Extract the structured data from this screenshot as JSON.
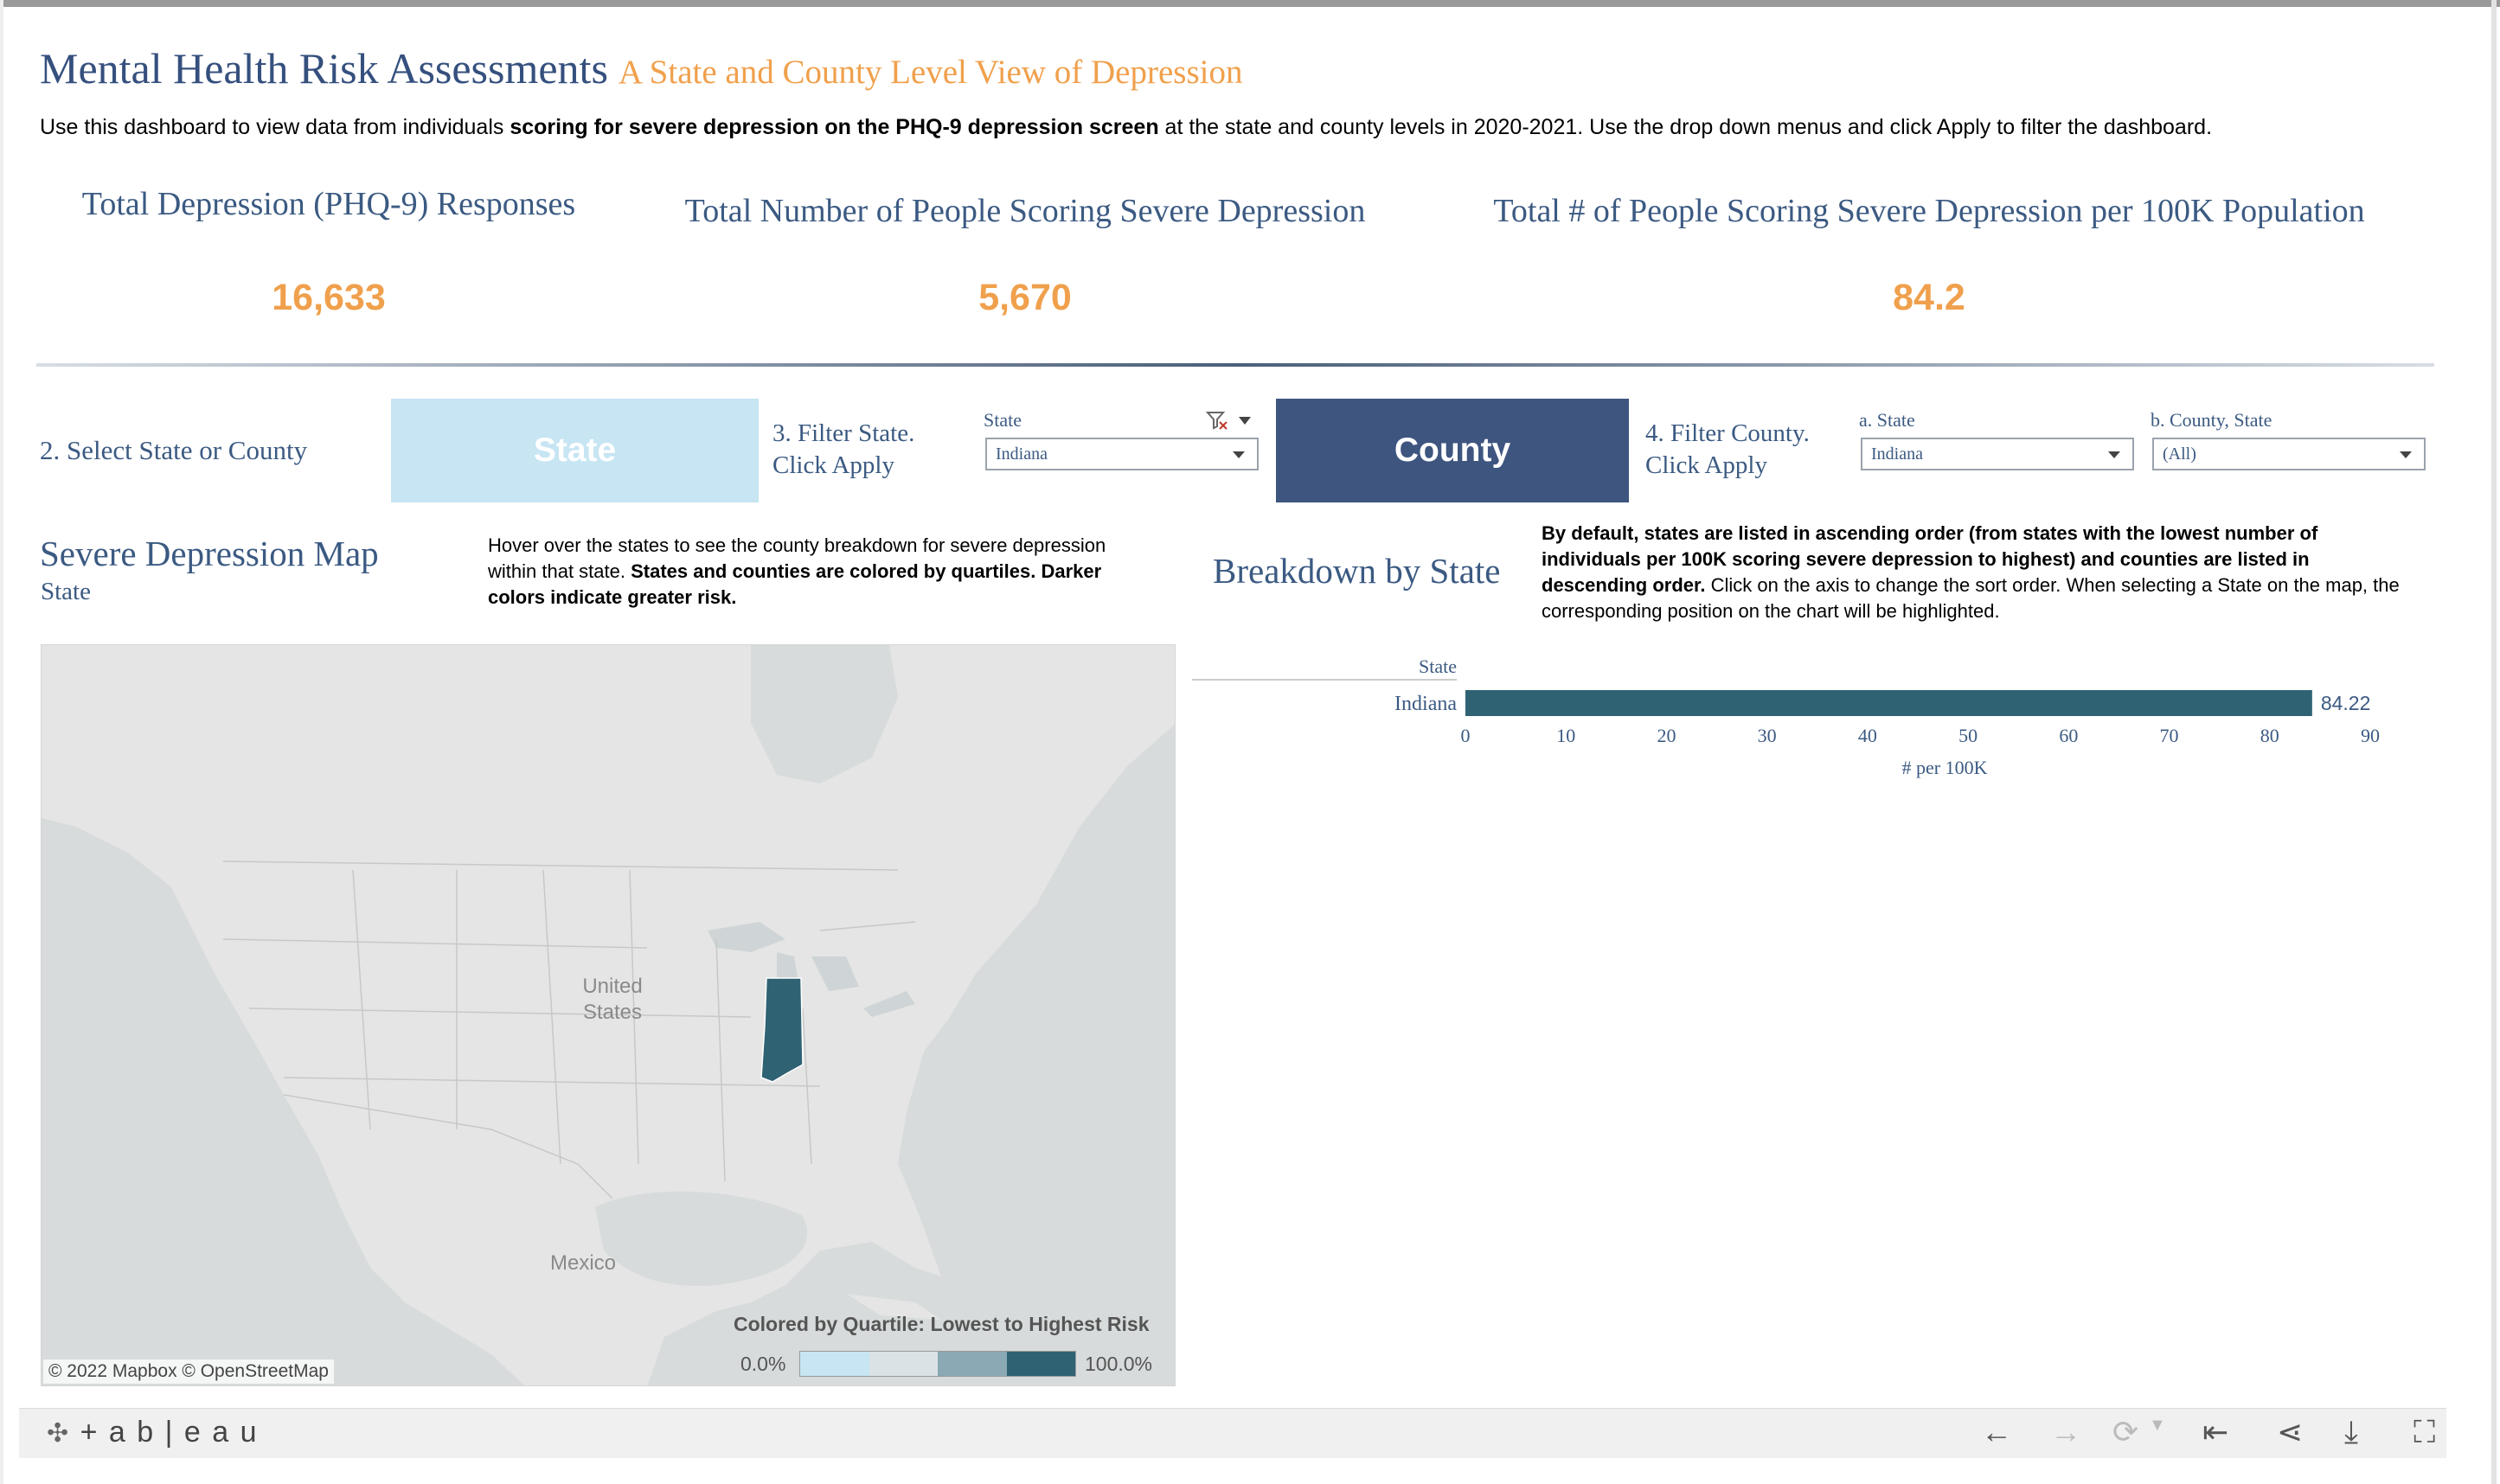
{
  "header": {
    "title": "Mental Health Risk Assessments",
    "subtitle": "A State and County Level View of Depression",
    "intro_prefix": "Use this dashboard to view data from individuals ",
    "intro_bold": "scoring for severe depression on the PHQ-9 depression screen",
    "intro_suffix": " at the state and county levels in 2020-2021. Use the drop down menus and click Apply to filter the dashboard."
  },
  "kpis": [
    {
      "label": "Total Depression (PHQ-9) Responses",
      "value": "16,633"
    },
    {
      "label": "Total Number of People Scoring Severe Depression",
      "value": "5,670"
    },
    {
      "label": "Total # of People Scoring Severe Depression per 100K Population",
      "value": "84.2"
    }
  ],
  "controls": {
    "select_label": "2. Select State or County",
    "state_button": "State",
    "filter_state_line1": "3. Filter State.",
    "filter_state_line2": "Click Apply",
    "state_dropdown_label": "State",
    "state_dropdown_value": "Indiana",
    "county_button": "County",
    "filter_county_line1": "4. Filter County.",
    "filter_county_line2": "Click Apply",
    "county_state_label": "a. State",
    "county_state_value": "Indiana",
    "county_label": "b. County, State",
    "county_value": "(All)"
  },
  "map_section": {
    "title": "Severe Depression Map",
    "subtitle": "State",
    "note_plain": "Hover over the states to see the county breakdown for severe depression within that state. ",
    "note_bold": "States and counties are colored by quartiles. Darker colors indicate greater risk.",
    "label_us_1": "United",
    "label_us_2": "States",
    "label_mexico": "Mexico",
    "attribution": "© 2022 Mapbox  © OpenStreetMap",
    "legend_title": "Colored by Quartile: Lowest to Highest Risk",
    "legend_min": "0.0%",
    "legend_max": "100.0%",
    "legend_colors": [
      "#c7e5f3",
      "#dbe2e6",
      "#8aa9b4",
      "#5a8594",
      "#2f6273"
    ],
    "highlight_color": "#2f6273"
  },
  "breakdown": {
    "title": "Breakdown by State",
    "note_bold": "By default, states are listed in ascending order (from states with the lowest number of individuals per 100K scoring severe depression to highest) and counties are listed in descending order.",
    "note_plain": " Click on the axis to change the sort order. When selecting a State on the map, the corresponding position on the chart will be highlighted."
  },
  "chart_data": {
    "type": "bar",
    "orientation": "horizontal",
    "category_header": "State",
    "categories": [
      "Indiana"
    ],
    "values": [
      84.22
    ],
    "value_labels": [
      "84.22"
    ],
    "xlabel": "# per 100K",
    "xlim": [
      0,
      90
    ],
    "ticks": [
      0,
      10,
      20,
      30,
      40,
      50,
      60,
      70,
      80,
      90
    ],
    "bar_color": "#2f6273"
  },
  "footer": {
    "brand": "+ a b | e a u"
  }
}
